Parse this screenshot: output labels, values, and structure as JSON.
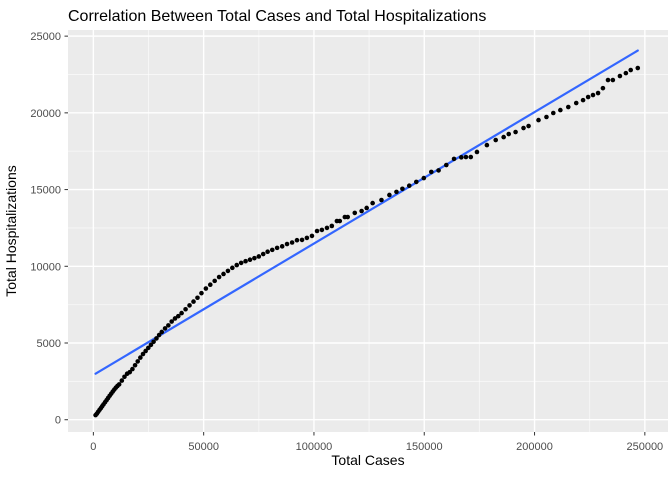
{
  "chart_data": {
    "type": "scatter",
    "title": "Correlation Between Total Cases and Total Hospitalizations",
    "xlabel": "Total Cases",
    "ylabel": "Total Hospitalizations",
    "legend": "none",
    "grid": "on",
    "x_domain": [
      -11500,
      260500
    ],
    "y_domain": [
      -800,
      25400
    ],
    "x_ticks": [
      0,
      50000,
      100000,
      150000,
      200000,
      250000
    ],
    "x_tick_labels": [
      "0",
      "50000",
      "100000",
      "150000",
      "200000",
      "250000"
    ],
    "y_ticks": [
      0,
      5000,
      10000,
      15000,
      20000,
      25000
    ],
    "y_tick_labels": [
      "0",
      "5000",
      "10000",
      "15000",
      "20000",
      "25000"
    ],
    "x_minor_ticks": [
      25000,
      75000,
      125000,
      175000,
      225000
    ],
    "y_minor_ticks": [
      2500,
      7500,
      12500,
      17500,
      22500
    ],
    "point_radius": 2.3,
    "colors": {
      "panel_bg": "#EBEBEB",
      "grid_major": "#FFFFFF",
      "grid_minor": "#FFFFFF",
      "point": "#000000",
      "smooth_line": "#3366FF",
      "tick_text": "#4D4D4D",
      "tick_mark": "#333333",
      "axis_title": "#000000",
      "title": "#000000"
    },
    "regression_line": {
      "x1": 1000,
      "y1": 3000,
      "x2": 246800,
      "y2": 24060
    },
    "points": [
      [
        1000,
        300
      ],
      [
        1600,
        400
      ],
      [
        2200,
        520
      ],
      [
        2800,
        640
      ],
      [
        3400,
        760
      ],
      [
        4000,
        880
      ],
      [
        4600,
        1000
      ],
      [
        5300,
        1140
      ],
      [
        6000,
        1280
      ],
      [
        6700,
        1420
      ],
      [
        7400,
        1560
      ],
      [
        8100,
        1700
      ],
      [
        8800,
        1840
      ],
      [
        9500,
        1970
      ],
      [
        10200,
        2090
      ],
      [
        10900,
        2200
      ],
      [
        11700,
        2300
      ],
      [
        12900,
        2550
      ],
      [
        14100,
        2800
      ],
      [
        15300,
        3000
      ],
      [
        16500,
        3100
      ],
      [
        17700,
        3300
      ],
      [
        18900,
        3550
      ],
      [
        20100,
        3800
      ],
      [
        21300,
        4050
      ],
      [
        22500,
        4280
      ],
      [
        23700,
        4480
      ],
      [
        24900,
        4680
      ],
      [
        26100,
        4880
      ],
      [
        27300,
        5080
      ],
      [
        28600,
        5300
      ],
      [
        29800,
        5520
      ],
      [
        31000,
        5720
      ],
      [
        32500,
        5950
      ],
      [
        34000,
        6150
      ],
      [
        35500,
        6400
      ],
      [
        37000,
        6600
      ],
      [
        38500,
        6750
      ],
      [
        40000,
        6950
      ],
      [
        41800,
        7200
      ],
      [
        43600,
        7450
      ],
      [
        45400,
        7700
      ],
      [
        47200,
        7950
      ],
      [
        49000,
        8250
      ],
      [
        51000,
        8550
      ],
      [
        53000,
        8800
      ],
      [
        55000,
        9050
      ],
      [
        57000,
        9300
      ],
      [
        59000,
        9500
      ],
      [
        61000,
        9700
      ],
      [
        63000,
        9900
      ],
      [
        65000,
        10080
      ],
      [
        67000,
        10220
      ],
      [
        69000,
        10330
      ],
      [
        71000,
        10430
      ],
      [
        73000,
        10530
      ],
      [
        75000,
        10640
      ],
      [
        77000,
        10800
      ],
      [
        79000,
        10950
      ],
      [
        81100,
        11070
      ],
      [
        83300,
        11200
      ],
      [
        85600,
        11300
      ],
      [
        87800,
        11450
      ],
      [
        90100,
        11550
      ],
      [
        92300,
        11700
      ],
      [
        94600,
        11720
      ],
      [
        96800,
        11850
      ],
      [
        99100,
        11980
      ],
      [
        101400,
        12300
      ],
      [
        103600,
        12370
      ],
      [
        105900,
        12500
      ],
      [
        108100,
        12630
      ],
      [
        110400,
        12950
      ],
      [
        111700,
        12950
      ],
      [
        114000,
        13210
      ],
      [
        115300,
        13210
      ],
      [
        118500,
        13480
      ],
      [
        121600,
        13600
      ],
      [
        123900,
        13800
      ],
      [
        126600,
        14120
      ],
      [
        130600,
        14320
      ],
      [
        134200,
        14650
      ],
      [
        137400,
        14850
      ],
      [
        140100,
        15050
      ],
      [
        143200,
        15250
      ],
      [
        146400,
        15500
      ],
      [
        149800,
        15750
      ],
      [
        153200,
        16150
      ],
      [
        156500,
        16250
      ],
      [
        160000,
        16600
      ],
      [
        163500,
        17000
      ],
      [
        166800,
        17100
      ],
      [
        168900,
        17120
      ],
      [
        171100,
        17120
      ],
      [
        173900,
        17450
      ],
      [
        178400,
        17900
      ],
      [
        182400,
        18230
      ],
      [
        186000,
        18420
      ],
      [
        188300,
        18620
      ],
      [
        191400,
        18750
      ],
      [
        195000,
        19010
      ],
      [
        197300,
        19140
      ],
      [
        201800,
        19530
      ],
      [
        205400,
        19730
      ],
      [
        208500,
        19990
      ],
      [
        211700,
        20180
      ],
      [
        215300,
        20380
      ],
      [
        218900,
        20640
      ],
      [
        222000,
        20830
      ],
      [
        224300,
        21030
      ],
      [
        226500,
        21160
      ],
      [
        228800,
        21290
      ],
      [
        231000,
        21610
      ],
      [
        233300,
        22140
      ],
      [
        235500,
        22140
      ],
      [
        238700,
        22400
      ],
      [
        241400,
        22590
      ],
      [
        243600,
        22790
      ],
      [
        246800,
        22920
      ]
    ]
  }
}
